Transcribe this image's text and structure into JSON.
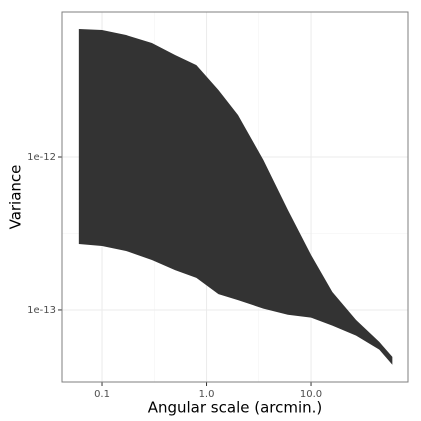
{
  "chart_data": {
    "type": "ribbon",
    "x_label": "Angular scale (arcmin.)",
    "y_label": "Variance",
    "x": [
      0.06,
      0.1,
      0.17,
      0.3,
      0.5,
      0.8,
      1.3,
      2,
      3.5,
      6,
      10,
      16,
      27,
      45,
      60
    ],
    "upper": [
      6.87e-12,
      6.76e-12,
      6.27e-12,
      5.56e-12,
      4.64e-12,
      3.99e-12,
      2.74e-12,
      1.88e-12,
      9.56e-13,
      4.51e-13,
      2.29e-13,
      1.31e-13,
      8.6e-14,
      6.18e-14,
      4.93e-14
    ],
    "lower": [
      2.7e-13,
      2.62e-13,
      2.43e-13,
      2.12e-13,
      1.82e-13,
      1.62e-13,
      1.27e-13,
      1.16e-13,
      1.02e-13,
      9.3e-14,
      8.9e-14,
      7.9e-14,
      6.8e-14,
      5.5e-14,
      4.38e-14
    ],
    "color": "#333333",
    "xlim": [
      0.0414,
      84.7
    ],
    "ylim": [
      3.38e-14,
      8.87e-12
    ],
    "xticks": [
      0.1,
      {
        "value": 1,
        "label": "1.0"
      },
      {
        "value": 10,
        "label": "10.0"
      }
    ],
    "yticks": [
      {
        "value": 1e-13,
        "label": "1e-13"
      },
      {
        "value": 1e-12,
        "label": "1e-12"
      }
    ],
    "x_log": true,
    "y_log": true,
    "grid": true
  }
}
